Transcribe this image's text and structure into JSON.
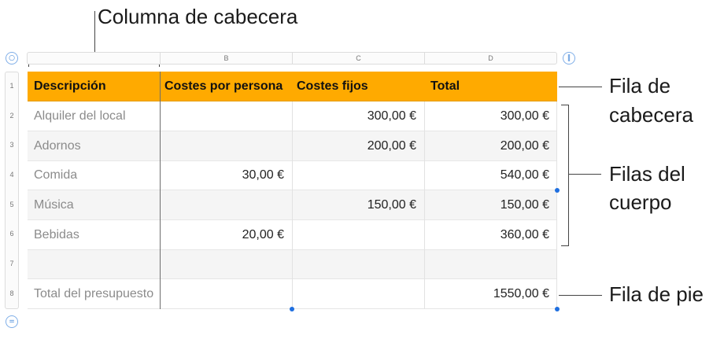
{
  "callouts": {
    "header_column": "Columna de cabecera",
    "header_row_line1": "Fila de",
    "header_row_line2": "cabecera",
    "body_rows_line1": "Filas del",
    "body_rows_line2": "cuerpo",
    "footer_row": "Fila de pie"
  },
  "column_letters": [
    "B",
    "C",
    "D"
  ],
  "row_numbers": [
    "1",
    "2",
    "3",
    "4",
    "5",
    "6",
    "7",
    "8"
  ],
  "table": {
    "header": [
      "Descripción",
      "Costes por persona",
      "Costes fijos",
      "Total"
    ],
    "rows": [
      [
        "Alquiler del local",
        "",
        "300,00 €",
        "300,00 €"
      ],
      [
        "Adornos",
        "",
        "200,00 €",
        "200,00 €"
      ],
      [
        "Comida",
        "30,00 €",
        "",
        "540,00 €"
      ],
      [
        "Música",
        "",
        "150,00 €",
        "150,00 €"
      ],
      [
        "Bebidas",
        "20,00 €",
        "",
        "360,00 €"
      ],
      [
        "",
        "",
        "",
        ""
      ]
    ],
    "footer": [
      "Total del presupuesto",
      "",
      "",
      "1550,00 €"
    ]
  },
  "colors": {
    "header_fill": "#ffaa00",
    "selection_handle": "#1f6fe0",
    "control_accent": "#3b82d8"
  },
  "icons": {
    "table_menu": "circle-icon",
    "add_column": "pause-bars-icon",
    "add_row": "equals-icon"
  }
}
